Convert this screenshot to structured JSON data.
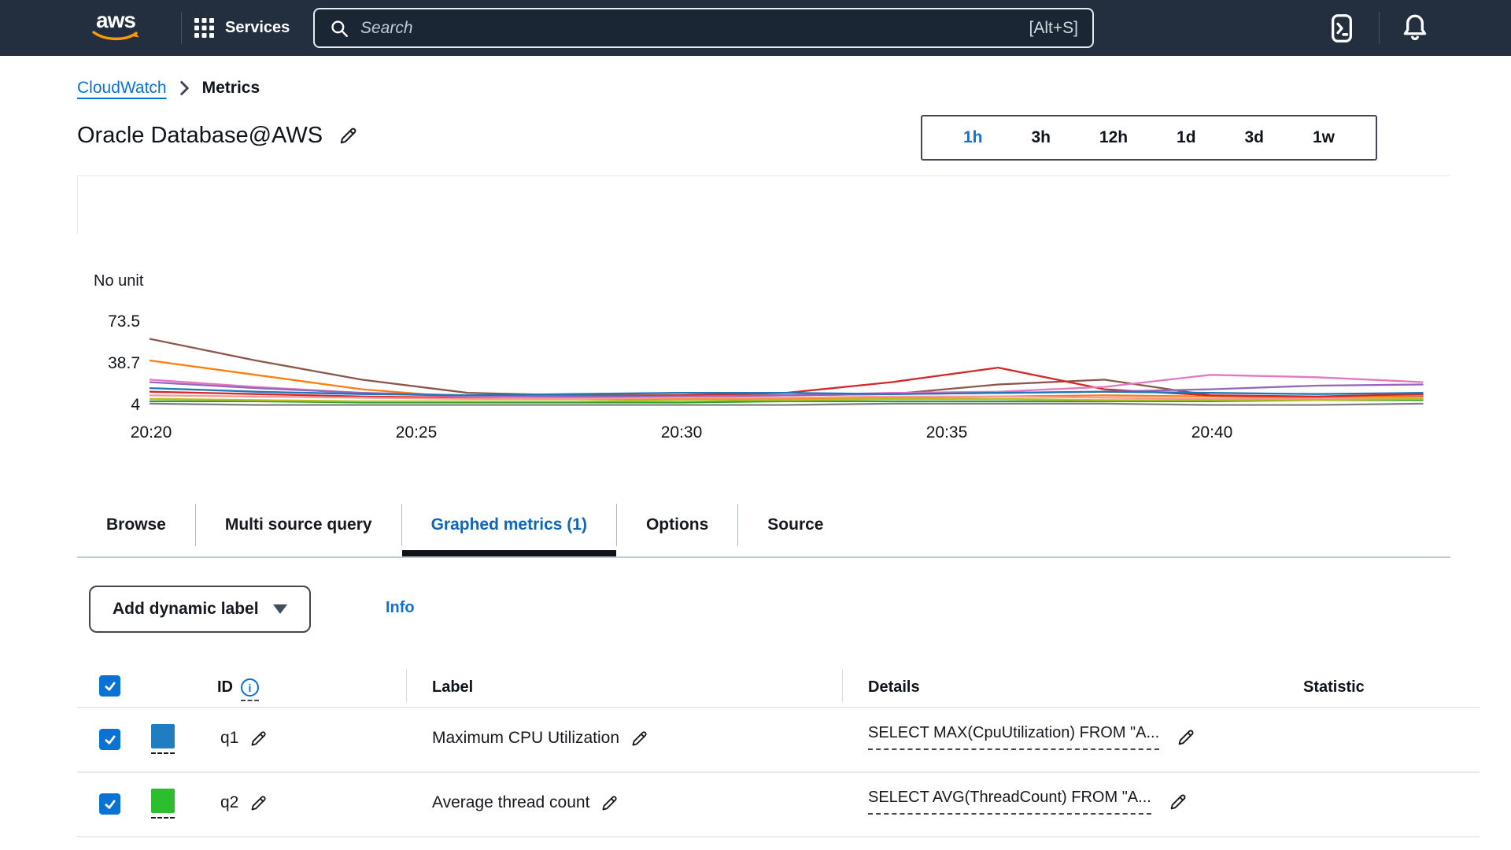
{
  "colors": {
    "topbar_bg": "#232f3e",
    "accent_blue": "#0972d3",
    "aws_orange": "#ff9900",
    "active_tab_underline": "#0f141a",
    "checkbox_blue": "#0972d3"
  },
  "topbar": {
    "brand": "aws",
    "services_label": "Services",
    "search_placeholder": "Search",
    "search_shortcut": "[Alt+S]"
  },
  "breadcrumb": {
    "cloudwatch": "CloudWatch",
    "metrics": "Metrics"
  },
  "page": {
    "title": "Oracle Database@AWS"
  },
  "time_range": {
    "options": [
      "1h",
      "3h",
      "12h",
      "1d",
      "3d",
      "1w"
    ],
    "selected": "1h"
  },
  "chart_data": {
    "type": "line",
    "title": "",
    "ylabel": "No unit",
    "yticks": [
      "73.5",
      "38.7",
      "4"
    ],
    "ylim": [
      4,
      76
    ],
    "xticks": [
      "20:20",
      "20:25",
      "20:30",
      "20:35",
      "20:40"
    ],
    "x": [
      "20:20",
      "20:22",
      "20:24",
      "20:26",
      "20:28",
      "20:30",
      "20:32",
      "20:34",
      "20:36",
      "20:38",
      "20:40",
      "20:42",
      "20:44"
    ],
    "grid": false,
    "legend_position": "none",
    "series": [
      {
        "name": "line-1",
        "color": "#8c564b",
        "values": [
          60,
          42,
          26,
          15,
          13,
          13,
          13,
          14,
          22,
          26,
          13,
          9,
          12
        ]
      },
      {
        "name": "line-2",
        "color": "#ff7f0e",
        "values": [
          42,
          30,
          18,
          11,
          10,
          10,
          10,
          11,
          12,
          13,
          12,
          11,
          13
        ]
      },
      {
        "name": "line-3",
        "color": "#d62728",
        "values": [
          16,
          14,
          12,
          11,
          12,
          13,
          15,
          24,
          36,
          18,
          13,
          12,
          14
        ]
      },
      {
        "name": "line-4",
        "color": "#e377c2",
        "values": [
          26,
          20,
          15,
          12,
          11,
          12,
          13,
          15,
          16,
          20,
          30,
          28,
          24
        ]
      },
      {
        "name": "line-5",
        "color": "#9467bd",
        "values": [
          24,
          19,
          15,
          13,
          12,
          12,
          13,
          14,
          15,
          16,
          18,
          21,
          22
        ]
      },
      {
        "name": "line-6",
        "color": "#1f77b4",
        "values": [
          19,
          16,
          14,
          13,
          14,
          15,
          15,
          14,
          15,
          16,
          15,
          14,
          15
        ]
      },
      {
        "name": "line-7",
        "color": "#ff9896",
        "values": [
          13,
          12,
          11,
          10,
          10,
          11,
          11,
          12,
          12,
          11,
          10,
          10,
          11
        ]
      },
      {
        "name": "line-8",
        "color": "#2ca02c",
        "values": [
          8,
          8,
          7,
          7,
          7,
          7,
          8,
          8,
          8,
          8,
          8,
          9,
          9
        ]
      },
      {
        "name": "line-9",
        "color": "#bcbd22",
        "values": [
          10,
          9,
          8,
          8,
          8,
          9,
          9,
          10,
          10,
          9,
          9,
          9,
          10
        ]
      },
      {
        "name": "line-10",
        "color": "#7f7f7f",
        "values": [
          6,
          5,
          5,
          5,
          5,
          5,
          5,
          6,
          6,
          6,
          5,
          5,
          6
        ]
      }
    ]
  },
  "tabs": {
    "items": [
      "Browse",
      "Multi source query",
      "Graphed metrics (1)",
      "Options",
      "Source"
    ],
    "active": "Graphed metrics (1)"
  },
  "toolbar": {
    "add_label_button": "Add dynamic label",
    "info_link": "Info"
  },
  "metrics_table": {
    "headers": {
      "id": "ID",
      "label": "Label",
      "details": "Details",
      "statistic": "Statistic"
    },
    "rows": [
      {
        "checked": true,
        "swatch_color": "#1f7ec2",
        "id": "q1",
        "label": "Maximum CPU Utilization",
        "details": "SELECT MAX(CpuUtilization) FROM \"A...",
        "statistic": ""
      },
      {
        "checked": true,
        "swatch_color": "#2dbe2d",
        "id": "q2",
        "label": "Average thread count",
        "details": "SELECT AVG(ThreadCount) FROM \"A...",
        "statistic": ""
      }
    ]
  }
}
